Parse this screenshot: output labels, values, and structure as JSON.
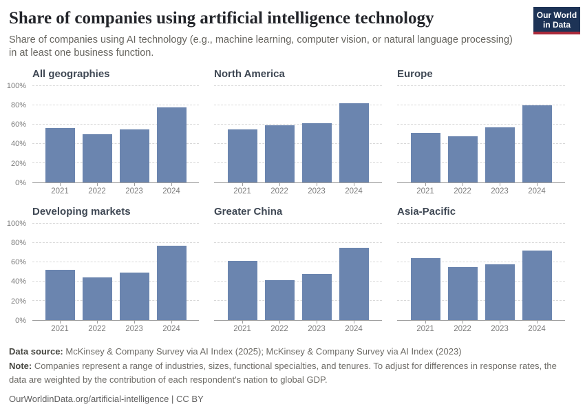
{
  "header": {
    "title": "Share of companies using artificial intelligence technology",
    "subtitle": "Share of companies using AI technology (e.g., machine learning, computer vision, or natural language processing) in at least one business function.",
    "logo": {
      "line1": "Our World",
      "line2": "in Data",
      "bg_color": "#1d3356",
      "accent_color": "#aa2a3a"
    }
  },
  "chart_data": {
    "type": "bar",
    "layout": "small-multiples (2 rows x 3 cols)",
    "categories": [
      "2021",
      "2022",
      "2023",
      "2024"
    ],
    "xlabel": "",
    "ylabel": "",
    "ylim": [
      0,
      100
    ],
    "yticks": [
      "0%",
      "20%",
      "40%",
      "60%",
      "80%",
      "100%"
    ],
    "grid": "dashed horizontal",
    "bar_color": "#6b85af",
    "facets": [
      {
        "title": "All geographies",
        "values": [
          56,
          50,
          55,
          78
        ]
      },
      {
        "title": "North America",
        "values": [
          55,
          59,
          61,
          82
        ]
      },
      {
        "title": "Europe",
        "values": [
          51,
          48,
          57,
          80
        ]
      },
      {
        "title": "Developing markets",
        "values": [
          52,
          44,
          49,
          77
        ]
      },
      {
        "title": "Greater China",
        "values": [
          61,
          41,
          48,
          75
        ]
      },
      {
        "title": "Asia-Pacific",
        "values": [
          64,
          55,
          58,
          72
        ]
      }
    ]
  },
  "footer": {
    "data_source_label": "Data source:",
    "data_source": "McKinsey & Company Survey via AI Index (2025); McKinsey & Company Survey via AI Index (2023)",
    "note_label": "Note:",
    "note": "Companies represent a range of industries, sizes, functional specialties, and tenures. To adjust for differences in response rates, the data are weighted by the contribution of each respondent's nation to global GDP.",
    "citation": "OurWorldinData.org/artificial-intelligence | CC BY"
  }
}
